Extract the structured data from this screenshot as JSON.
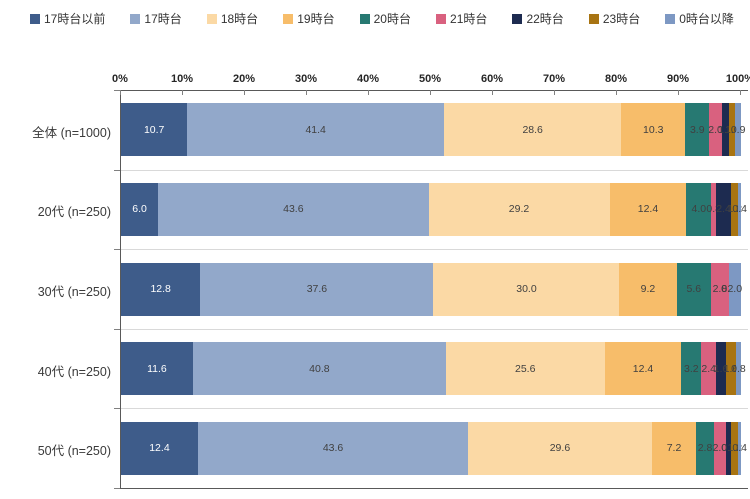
{
  "chart_data": {
    "type": "bar",
    "stacked": true,
    "orientation": "horizontal",
    "unit": "%",
    "xlim": [
      0,
      100
    ],
    "x_ticks": [
      "0%",
      "10%",
      "20%",
      "30%",
      "40%",
      "50%",
      "60%",
      "70%",
      "80%",
      "90%",
      "100%"
    ],
    "categories": [
      "全体 (n=1000)",
      "20代 (n=250)",
      "30代 (n=250)",
      "40代 (n=250)",
      "50代 (n=250)"
    ],
    "series": [
      {
        "name": "17時台以前",
        "color": "#3e5c8a",
        "values": [
          10.7,
          6.0,
          12.8,
          11.6,
          12.4
        ]
      },
      {
        "name": "17時台",
        "color": "#92a8ca",
        "values": [
          41.4,
          43.6,
          37.6,
          40.8,
          43.6
        ]
      },
      {
        "name": "18時台",
        "color": "#fbd9a5",
        "values": [
          28.6,
          29.2,
          30.0,
          25.6,
          29.6
        ]
      },
      {
        "name": "19時台",
        "color": "#f7bd6a",
        "values": [
          10.3,
          12.4,
          9.2,
          12.4,
          7.2
        ]
      },
      {
        "name": "20時台",
        "color": "#277972",
        "values": [
          3.9,
          4.0,
          5.6,
          3.2,
          2.8
        ]
      },
      {
        "name": "21時台",
        "color": "#d9617f",
        "values": [
          2.0,
          0.8,
          2.8,
          2.4,
          2.0
        ]
      },
      {
        "name": "22時台",
        "color": "#1d2b50",
        "values": [
          1.2,
          2.4,
          0.0,
          1.6,
          0.8
        ]
      },
      {
        "name": "23時台",
        "color": "#a87412",
        "values": [
          1.0,
          1.2,
          0.0,
          1.6,
          1.2
        ]
      },
      {
        "name": "0時台以降",
        "color": "#7d98c3",
        "values": [
          0.9,
          0.4,
          2.0,
          0.8,
          0.4
        ]
      }
    ],
    "legend_position": "top",
    "value_decimals": 1,
    "first_series_label_color": "#ffffff",
    "data_label_color": "#404040",
    "axis_line_color": "#595959",
    "tick_color": "#808080",
    "row_separator_color": "#d9d9d9",
    "background_color": "#ffffff"
  }
}
